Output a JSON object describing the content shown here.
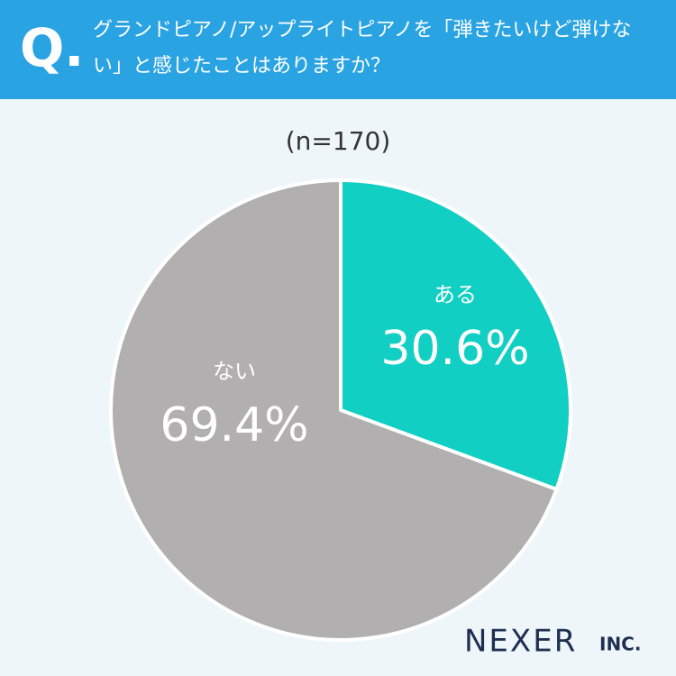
{
  "question_mark": "Q.",
  "brand": {
    "name": "NEXER",
    "suffix": "INC."
  },
  "chart_data": {
    "type": "pie",
    "title": "グランドピアノ/アップライトピアノを「弾きたいけど弾けない」と感じたことはありますか？",
    "subtitle": "(n=170)",
    "categories": [
      "ある",
      "ない"
    ],
    "values": [
      30.6,
      69.4
    ],
    "value_labels": [
      "30.6%",
      "69.4%"
    ],
    "colors": [
      "#12cfc3",
      "#b1afb0"
    ]
  }
}
